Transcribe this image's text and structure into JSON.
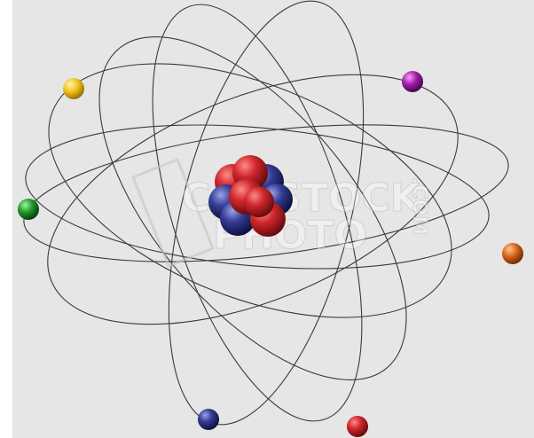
{
  "watermark": {
    "line1": "CANSTOCK",
    "line2": "PHOTO",
    "suffix": ".COM"
  }
}
